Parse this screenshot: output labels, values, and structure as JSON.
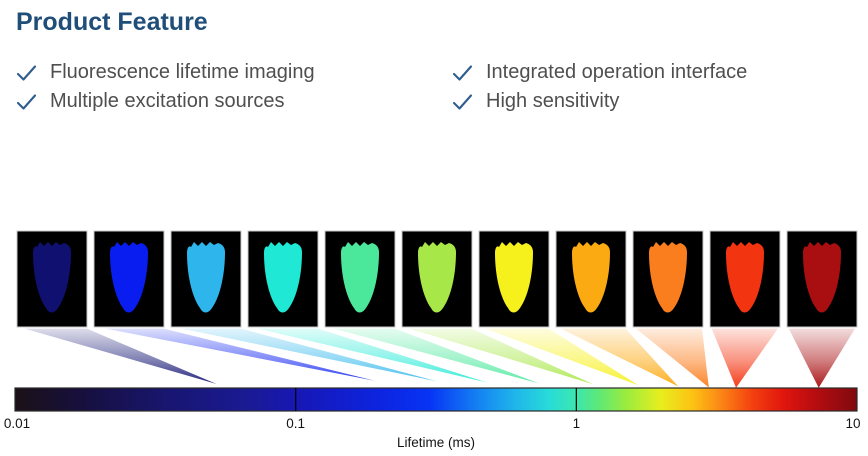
{
  "header": {
    "title": "Product Feature",
    "title_color": "#1F4E79"
  },
  "features": [
    {
      "label": "Fluorescence lifetime imaging"
    },
    {
      "label": "Multiple excitation sources"
    },
    {
      "label": "Integrated operation interface"
    },
    {
      "label": "High sensitivity"
    }
  ],
  "check_icon": {
    "name": "check-icon",
    "color": "#2E5D8F"
  },
  "chart_data": {
    "type": "heatmap",
    "title": "",
    "xlabel": "Lifetime (ms)",
    "description": "Row of 11 fluorescence-lifetime sample images (tooth-shaped specimens on black), each connected by a fading wedge to its lifetime position on a logarithmic color scale bar.",
    "samples": [
      {
        "lifetime_ms": 0.06,
        "color": "#0f1070"
      },
      {
        "lifetime_ms": 0.27,
        "color": "#0a1df0"
      },
      {
        "lifetime_ms": 0.43,
        "color": "#2eb6ec"
      },
      {
        "lifetime_ms": 0.6,
        "color": "#1fe9d4"
      },
      {
        "lifetime_ms": 0.87,
        "color": "#4be89c"
      },
      {
        "lifetime_ms": 1.3,
        "color": "#a8e748"
      },
      {
        "lifetime_ms": 1.8,
        "color": "#f6f01c"
      },
      {
        "lifetime_ms": 2.4,
        "color": "#fcaa12"
      },
      {
        "lifetime_ms": 3.0,
        "color": "#fb7e1e"
      },
      {
        "lifetime_ms": 3.7,
        "color": "#f33411"
      },
      {
        "lifetime_ms": 7.3,
        "color": "#a90f11"
      }
    ],
    "colorbar": {
      "scale": "log",
      "min": 0.01,
      "max": 10,
      "ticks": [
        0.01,
        0.1,
        1,
        10
      ],
      "tick_labels": [
        "0.01",
        "0.1",
        "1",
        "10"
      ],
      "gradient": [
        {
          "value": 0.01,
          "color": "#1b1117"
        },
        {
          "value": 0.018,
          "color": "#171040"
        },
        {
          "value": 0.035,
          "color": "#181670"
        },
        {
          "value": 0.07,
          "color": "#1a1a96"
        },
        {
          "value": 0.1,
          "color": "#1717b4"
        },
        {
          "value": 0.2,
          "color": "#0d24e0"
        },
        {
          "value": 0.3,
          "color": "#0734f4"
        },
        {
          "value": 0.45,
          "color": "#1583f2"
        },
        {
          "value": 0.6,
          "color": "#1fb4ea"
        },
        {
          "value": 0.8,
          "color": "#28dcd8"
        },
        {
          "value": 1.0,
          "color": "#3ce6ae"
        },
        {
          "value": 1.2,
          "color": "#5ee878"
        },
        {
          "value": 1.5,
          "color": "#9aec3e"
        },
        {
          "value": 2.0,
          "color": "#e8ee1e"
        },
        {
          "value": 2.6,
          "color": "#fdc113"
        },
        {
          "value": 3.2,
          "color": "#fb8c16"
        },
        {
          "value": 4.2,
          "color": "#f4420f"
        },
        {
          "value": 5.5,
          "color": "#e0150e"
        },
        {
          "value": 7.0,
          "color": "#b80d10"
        },
        {
          "value": 10,
          "color": "#7f0a0e"
        }
      ]
    }
  }
}
